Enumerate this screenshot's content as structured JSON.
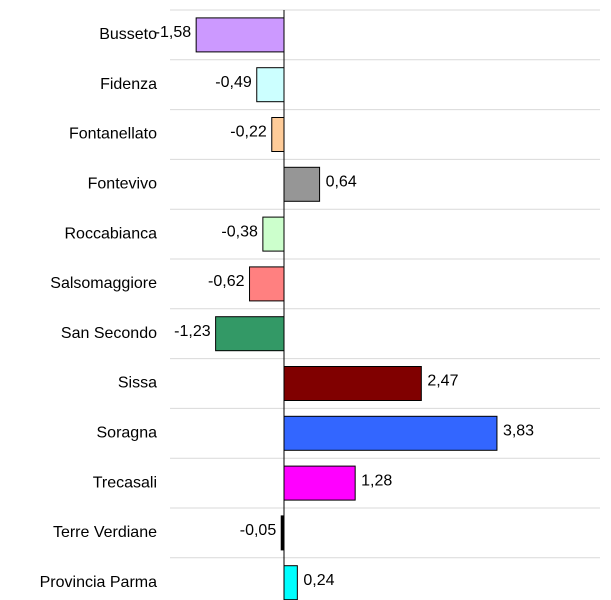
{
  "chart_data": {
    "type": "bar",
    "orientation": "horizontal",
    "categories": [
      "Busseto",
      "Fidenza",
      "Fontanellato",
      "Fontevivo",
      "Roccabianca",
      "Salsomaggiore",
      "San Secondo",
      "Sissa",
      "Soragna",
      "Trecasali",
      "Terre Verdiane",
      "Provincia Parma"
    ],
    "values": [
      -1.58,
      -0.49,
      -0.22,
      0.64,
      -0.38,
      -0.62,
      -1.23,
      2.47,
      3.83,
      1.28,
      -0.05,
      0.24
    ],
    "value_labels": [
      "-1,58",
      "-0,49",
      "-0,22",
      "0,64",
      "-0,38",
      "-0,62",
      "-1,23",
      "2,47",
      "3,83",
      "1,28",
      "-0,05",
      "0,24"
    ],
    "colors": [
      "#cc99ff",
      "#ccffff",
      "#ffcc99",
      "#969696",
      "#ccffcc",
      "#ff8080",
      "#339966",
      "#800000",
      "#3366ff",
      "#ff00ff",
      "#000000",
      "#00ffff"
    ]
  }
}
